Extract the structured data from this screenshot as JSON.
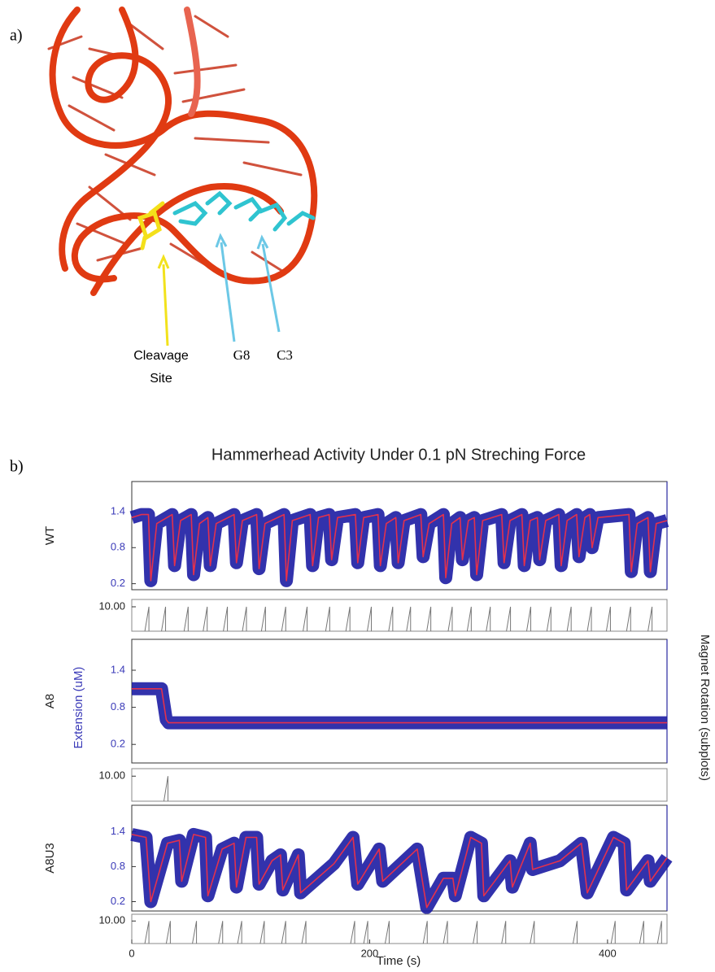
{
  "panel_a": {
    "label": "a)",
    "cleavage_site": [
      "Cleavage",
      "Site"
    ],
    "g8": "G8",
    "c3": "C3"
  },
  "panel_b": {
    "label": "b)"
  },
  "chart_data": {
    "title": "Hammerhead Activity Under 0.1 pN Streching Force",
    "xlabel": "Time (s)",
    "ylabel": "Extension (uM)",
    "y2label": "Magnet Rotation (subplots)",
    "xlim": [
      0,
      450
    ],
    "xticks": [
      0,
      200,
      400
    ],
    "subplots": [
      {
        "type": "line",
        "name": "WT",
        "color": "#e3314d",
        "noise_color": "#1c1ca3",
        "ylim": [
          0.1,
          1.9
        ],
        "yticks": [
          0.2,
          0.8,
          1.4
        ],
        "x": [
          0,
          8,
          14,
          16,
          21,
          34,
          36,
          41,
          50,
          52,
          57,
          64,
          66,
          71,
          86,
          88,
          93,
          105,
          107,
          112,
          128,
          130,
          135,
          150,
          152,
          157,
          166,
          168,
          173,
          188,
          190,
          195,
          207,
          209,
          214,
          222,
          224,
          229,
          243,
          245,
          250,
          262,
          264,
          269,
          276,
          278,
          283,
          288,
          290,
          295,
          311,
          313,
          318,
          328,
          330,
          335,
          341,
          343,
          348,
          359,
          361,
          366,
          374,
          376,
          381,
          385,
          387,
          392,
          418,
          420,
          425,
          434,
          436,
          441,
          450
        ],
        "values": [
          1.3,
          1.35,
          1.35,
          0.25,
          1.2,
          1.35,
          0.5,
          1.25,
          1.35,
          0.35,
          1.2,
          1.3,
          0.5,
          1.2,
          1.35,
          0.55,
          1.25,
          1.35,
          0.45,
          1.2,
          1.35,
          0.25,
          1.25,
          1.35,
          0.5,
          1.3,
          1.35,
          0.6,
          1.3,
          1.35,
          0.55,
          1.3,
          1.35,
          0.5,
          1.2,
          1.3,
          0.55,
          1.25,
          1.35,
          0.65,
          1.2,
          1.35,
          0.3,
          1.2,
          1.3,
          0.6,
          1.25,
          1.3,
          0.35,
          1.25,
          1.35,
          0.55,
          1.25,
          1.35,
          0.5,
          1.25,
          1.3,
          0.6,
          1.25,
          1.35,
          0.5,
          1.25,
          1.35,
          0.65,
          1.3,
          1.35,
          0.8,
          1.3,
          1.35,
          0.4,
          1.2,
          1.3,
          0.4,
          1.2,
          1.25
        ]
      },
      {
        "type": "stem",
        "color": "#777777",
        "ylim": [
          0,
          13
        ],
        "yticks": [
          {
            "value": 10,
            "label": "10.00"
          }
        ],
        "x": [
          11,
          25,
          44,
          60,
          77,
          93,
          109,
          126,
          144,
          163,
          180,
          198,
          216,
          231,
          248,
          266,
          282,
          298,
          315,
          332,
          349,
          366,
          383,
          399,
          416,
          434
        ],
        "values": [
          10,
          10,
          10,
          10,
          10,
          10,
          10,
          10,
          10,
          10,
          10,
          10,
          10,
          10,
          10,
          10,
          10,
          10,
          10,
          10,
          10,
          10,
          10,
          10,
          10,
          10
        ]
      },
      {
        "type": "line",
        "name": "A8",
        "color": "#e3314d",
        "noise_color": "#1c1ca3",
        "ylim": [
          -0.1,
          1.9
        ],
        "yticks": [
          0.2,
          0.8,
          1.4
        ],
        "x": [
          0,
          25,
          29,
          31,
          120,
          250,
          380,
          450
        ],
        "values": [
          1.1,
          1.1,
          0.6,
          0.55,
          0.55,
          0.55,
          0.55,
          0.55
        ]
      },
      {
        "type": "stem",
        "color": "#777777",
        "ylim": [
          0,
          13
        ],
        "yticks": [
          {
            "value": 10,
            "label": "10.00"
          }
        ],
        "x": [
          27
        ],
        "values": [
          10
        ]
      },
      {
        "type": "line",
        "name": "A8U3",
        "color": "#e3314d",
        "noise_color": "#1c1ca3",
        "ylim": [
          0.04,
          1.85
        ],
        "yticks": [
          0.2,
          0.8,
          1.4
        ],
        "x": [
          0,
          12,
          16,
          30,
          40,
          42,
          52,
          62,
          64,
          76,
          86,
          88,
          96,
          105,
          107,
          118,
          125,
          127,
          140,
          142,
          170,
          186,
          190,
          208,
          211,
          240,
          248,
          262,
          270,
          272,
          285,
          294,
          296,
          318,
          320,
          335,
          337,
          360,
          378,
          383,
          405,
          414,
          416,
          434,
          436,
          450
        ],
        "values": [
          1.35,
          1.3,
          0.2,
          1.2,
          1.25,
          0.55,
          1.35,
          1.3,
          0.3,
          1.1,
          1.2,
          0.45,
          1.3,
          1.3,
          0.5,
          0.9,
          1.0,
          0.4,
          1.0,
          0.35,
          0.85,
          1.3,
          0.5,
          1.1,
          0.55,
          1.1,
          0.1,
          0.6,
          0.6,
          0.3,
          1.3,
          1.2,
          0.3,
          0.9,
          0.45,
          1.2,
          0.75,
          0.9,
          1.2,
          0.35,
          1.3,
          1.2,
          0.4,
          0.9,
          0.55,
          0.95
        ]
      },
      {
        "type": "stem",
        "color": "#777777",
        "ylim": [
          0,
          13
        ],
        "yticks": [
          {
            "value": 10,
            "label": "10.00"
          }
        ],
        "x": [
          11,
          29,
          51,
          73,
          89,
          108,
          126,
          143,
          184,
          195,
          213,
          245,
          262,
          287,
          311,
          335,
          371,
          403,
          427,
          442
        ],
        "values": [
          10,
          10,
          10,
          10,
          10,
          10,
          10,
          10,
          10,
          10,
          10,
          10,
          10,
          10,
          10,
          10,
          10,
          10,
          10,
          10
        ]
      }
    ]
  }
}
